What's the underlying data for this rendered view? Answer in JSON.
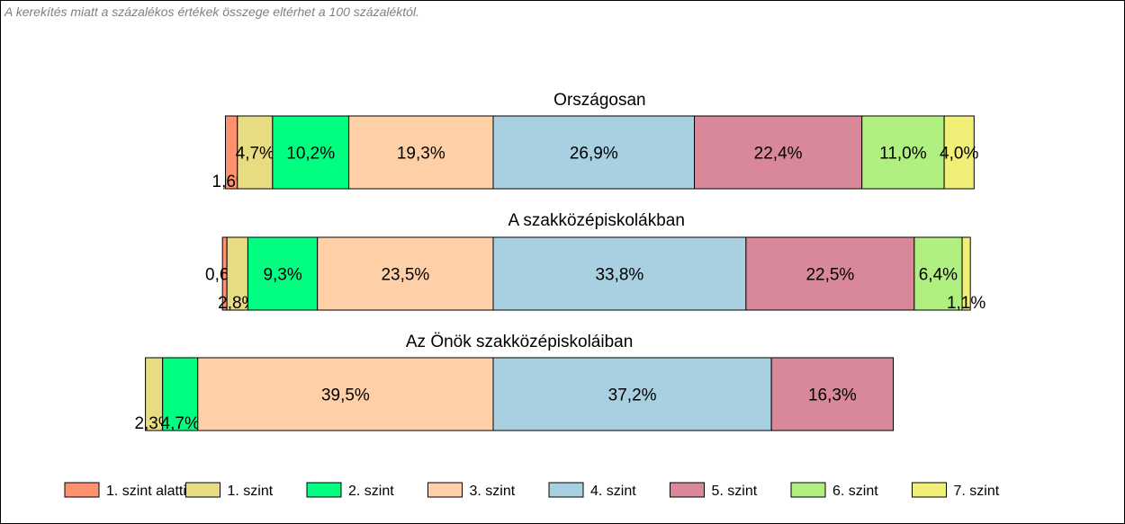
{
  "note": "A kerekítés miatt a  százalékos értékek összege eltérhet a 100 százaléktól.",
  "chart_data": {
    "type": "bar",
    "orientation": "horizontal",
    "stacked": true,
    "percent_scale": true,
    "categories": [
      "Országosan",
      "A szakközépiskolákban",
      "Az Önök szakközépiskoláiban"
    ],
    "series": [
      {
        "name": "1. szint alatti",
        "color": "#FF9070",
        "values": [
          1.6,
          0.6,
          0.0
        ],
        "labels": [
          "1,6%",
          "0,6%",
          ""
        ]
      },
      {
        "name": "1. szint",
        "color": "#E8DC82",
        "values": [
          4.7,
          2.8,
          2.3
        ],
        "labels": [
          "4,7%",
          "2,8%",
          "2,3%"
        ]
      },
      {
        "name": "2. szint",
        "color": "#00FF80",
        "values": [
          10.2,
          9.3,
          4.7
        ],
        "labels": [
          "10,2%",
          "9,3%",
          "4,7%"
        ]
      },
      {
        "name": "3. szint",
        "color": "#FFD0A8",
        "values": [
          19.3,
          23.5,
          39.5
        ],
        "labels": [
          "19,3%",
          "23,5%",
          "39,5%"
        ]
      },
      {
        "name": "4. szint",
        "color": "#A8D0E0",
        "values": [
          26.9,
          33.8,
          37.2
        ],
        "labels": [
          "26,9%",
          "33,8%",
          "37,2%"
        ]
      },
      {
        "name": "5. szint",
        "color": "#D88898",
        "values": [
          22.4,
          22.5,
          16.3
        ],
        "labels": [
          "22,4%",
          "22,5%",
          "16,3%"
        ]
      },
      {
        "name": "6. szint",
        "color": "#B0F080",
        "values": [
          11.0,
          6.4,
          0.0
        ],
        "labels": [
          "11,0%",
          "6,4%",
          ""
        ]
      },
      {
        "name": "7. szint",
        "color": "#F0F078",
        "values": [
          4.0,
          1.1,
          0.0
        ],
        "labels": [
          "4,0%",
          "1,1%",
          ""
        ]
      }
    ],
    "alignment": "diverging around the boundary between 3. szint and 4. szint",
    "legend": "bottom",
    "grid": false,
    "xlabel": "",
    "ylabel": ""
  }
}
